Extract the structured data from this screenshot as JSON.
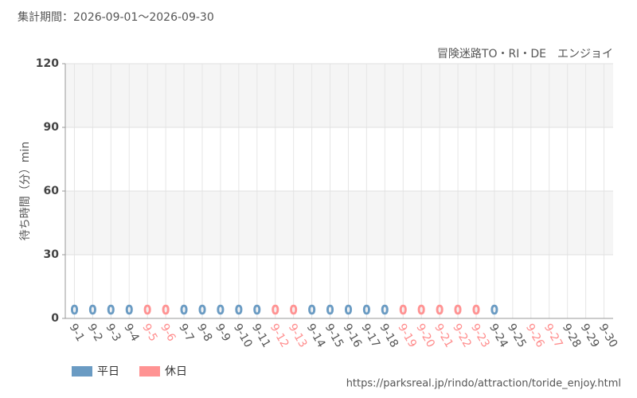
{
  "chart_data": {
    "type": "bar",
    "title": "集計期間：2026-09-01～2026-09-30",
    "subtitle": "冒険迷路TO・RI・DE　エンジョイ",
    "y_label": "待ち時間（分）min",
    "source": "https://parksreal.jp/rindo/attraction/toride_enjoy.html",
    "categories": [
      "9-1",
      "9-2",
      "9-3",
      "9-4",
      "9-5",
      "9-6",
      "9-7",
      "9-8",
      "9-9",
      "9-10",
      "9-11",
      "9-12",
      "9-13",
      "9-14",
      "9-15",
      "9-16",
      "9-17",
      "9-18",
      "9-19",
      "9-20",
      "9-21",
      "9-22",
      "9-23",
      "9-24",
      "9-25",
      "9-26",
      "9-27",
      "9-28",
      "9-29",
      "9-30"
    ],
    "category_colors": [
      "#555",
      "#555",
      "#555",
      "#555",
      "#ff8c8c",
      "#ff8c8c",
      "#555",
      "#555",
      "#555",
      "#555",
      "#555",
      "#ff8c8c",
      "#ff8c8c",
      "#555",
      "#555",
      "#555",
      "#555",
      "#555",
      "#ff8c8c",
      "#ff8c8c",
      "#ff8c8c",
      "#ff8c8c",
      "#ff8c8c",
      "#555",
      "#555",
      "#ff8c8c",
      "#ff8c8c",
      "#555",
      "#555",
      "#555"
    ],
    "series": [
      {
        "name": "平日",
        "color": "#6a9bc3",
        "values": [
          0,
          0,
          0,
          0,
          null,
          null,
          0,
          0,
          0,
          0,
          0,
          null,
          null,
          0,
          0,
          0,
          0,
          0,
          null,
          null,
          null,
          null,
          null,
          0,
          null,
          null,
          null,
          null,
          null,
          null
        ]
      },
      {
        "name": "休日",
        "color": "#ff9393",
        "values": [
          null,
          null,
          null,
          null,
          0,
          0,
          null,
          null,
          null,
          null,
          null,
          0,
          0,
          null,
          null,
          null,
          null,
          null,
          0,
          0,
          0,
          0,
          0,
          null,
          null,
          null,
          null,
          null,
          null,
          null
        ]
      }
    ],
    "ylim": [
      0,
      120
    ],
    "yticks": [
      0,
      30,
      60,
      90,
      120
    ],
    "grid": true
  }
}
